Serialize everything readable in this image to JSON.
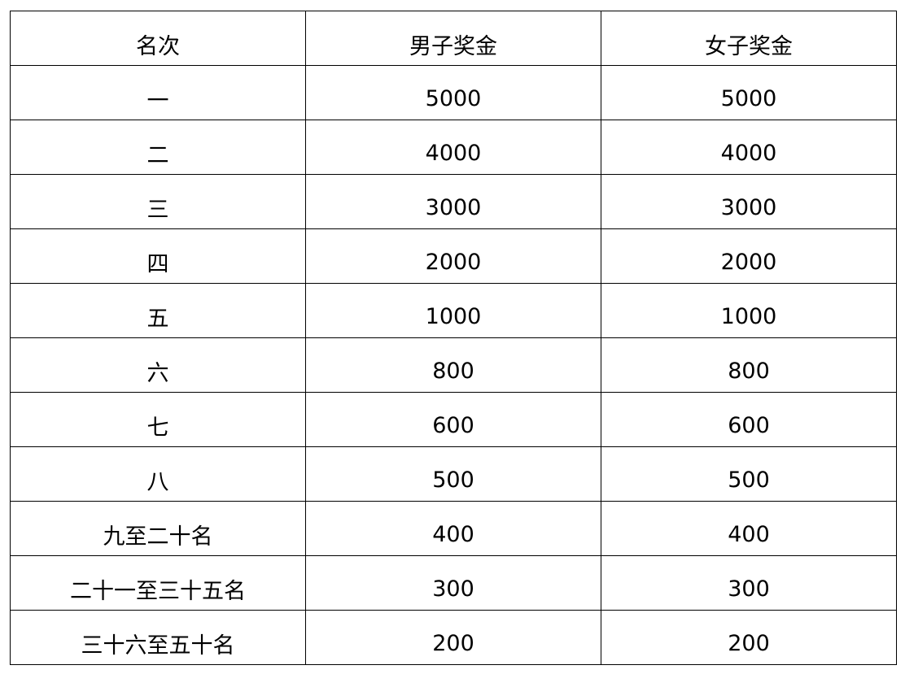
{
  "table": {
    "headers": [
      "名次",
      "男子奖金",
      "女子奖金"
    ],
    "rows": [
      [
        "一",
        "5000",
        "5000"
      ],
      [
        "二",
        "4000",
        "4000"
      ],
      [
        "三",
        "3000",
        "3000"
      ],
      [
        "四",
        "2000",
        "2000"
      ],
      [
        "五",
        "1000",
        "1000"
      ],
      [
        "六",
        "800",
        "800"
      ],
      [
        "七",
        "600",
        "600"
      ],
      [
        "八",
        "500",
        "500"
      ],
      [
        "九至二十名",
        "400",
        "400"
      ],
      [
        "二十一至三十五名",
        "300",
        "300"
      ],
      [
        "三十六至五十名",
        "200",
        "200"
      ]
    ]
  }
}
